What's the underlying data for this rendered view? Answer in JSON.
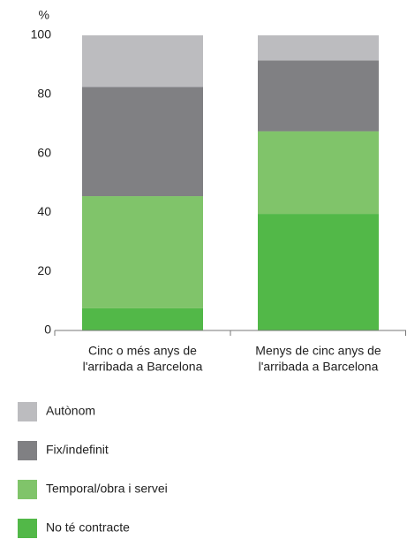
{
  "chart_data": {
    "type": "stacked_bar",
    "y_label": "%",
    "categories": [
      [
        "Cinc o més anys de",
        "l'arribada a Barcelona"
      ],
      [
        "Menys de cinc anys de",
        "l'arribada a Barcelona"
      ]
    ],
    "series": [
      {
        "name": "No té contracte",
        "color": "#52b848",
        "values": [
          7.5,
          39.5
        ]
      },
      {
        "name": "Temporal/obra i servei",
        "color": "#80c46a",
        "values": [
          38,
          28
        ]
      },
      {
        "name": "Fix/indefinit",
        "color": "#808083",
        "values": [
          37,
          24
        ]
      },
      {
        "name": "Autònom",
        "color": "#bcbcbf",
        "values": [
          17.5,
          8.5
        ]
      }
    ],
    "ylim": [
      0,
      100
    ],
    "yticks": [
      0,
      20,
      40,
      60,
      80,
      100
    ]
  }
}
